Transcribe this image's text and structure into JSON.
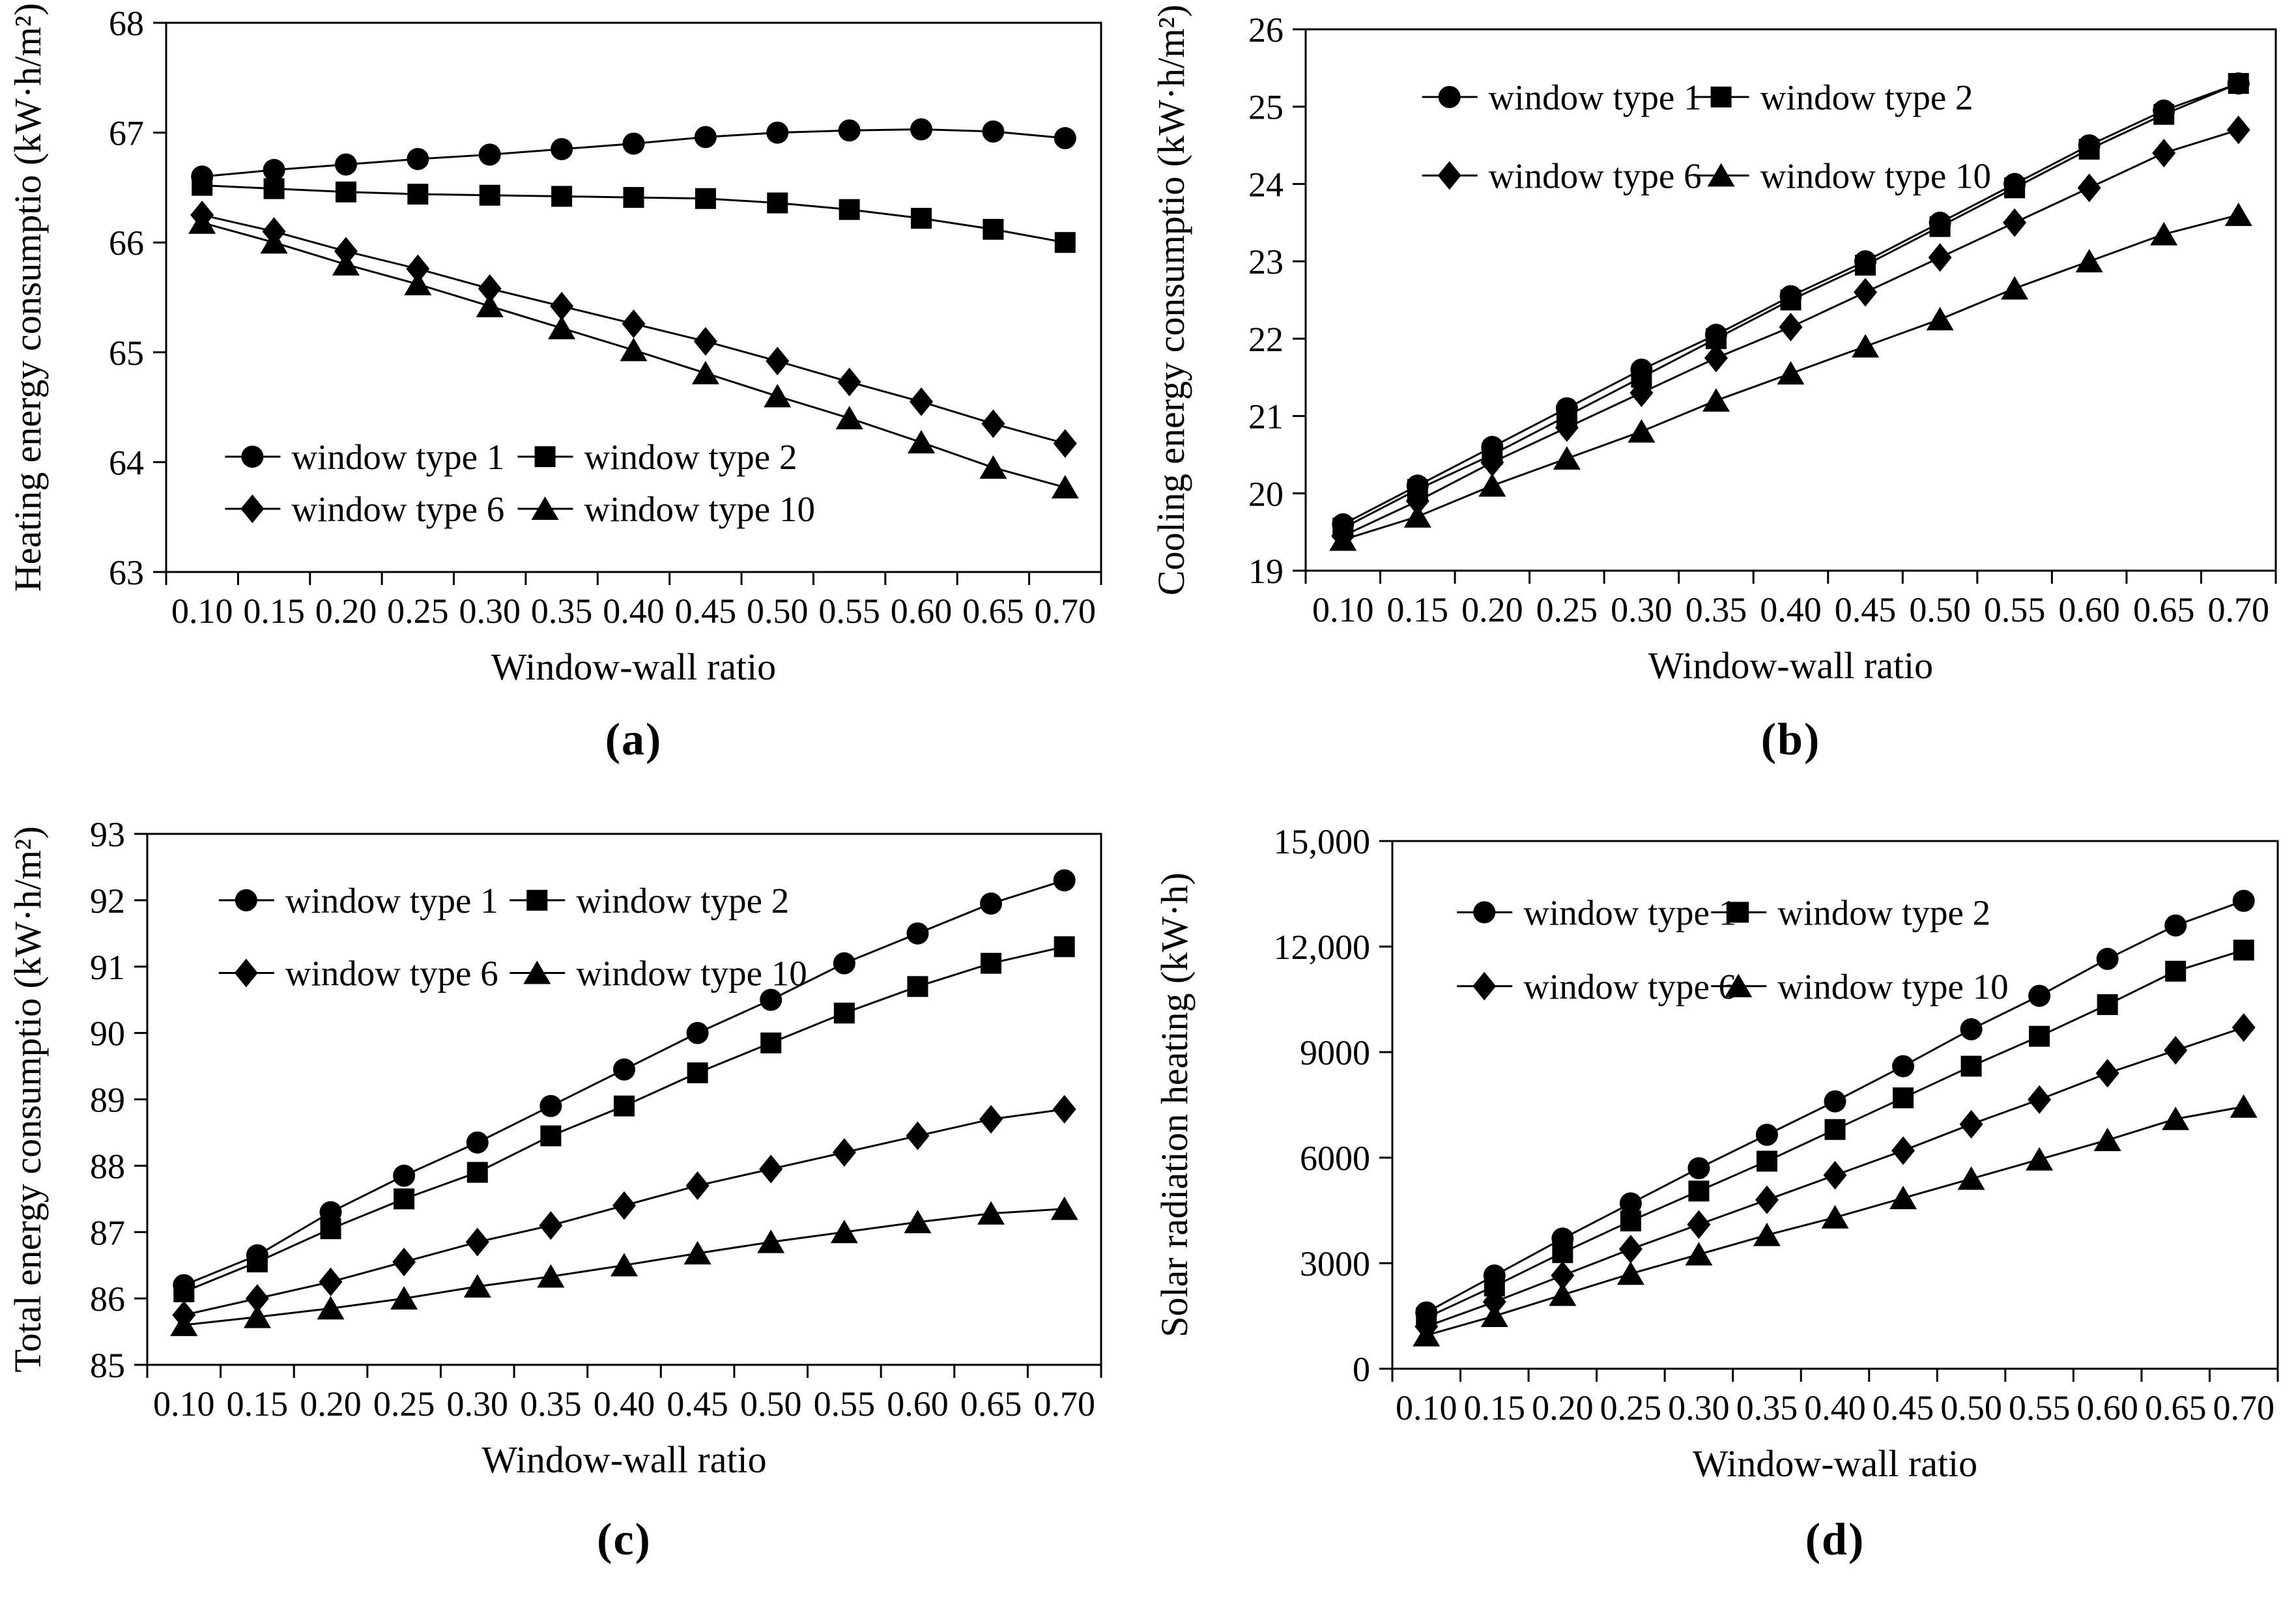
{
  "page": {
    "background": "#ffffff",
    "ink_color": "#000000"
  },
  "chart_data": [
    {
      "id": "a",
      "type": "line",
      "caption": "(a)",
      "xlabel": "Window-wall ratio",
      "ylabel": "Heating energy consumptio (kW·h/m²)",
      "categories": [
        "0.10",
        "0.15",
        "0.20",
        "0.25",
        "0.30",
        "0.35",
        "0.40",
        "0.45",
        "0.50",
        "0.55",
        "0.60",
        "0.65",
        "0.70"
      ],
      "ylim": [
        63,
        68
      ],
      "yticks": [
        63,
        64,
        65,
        66,
        67,
        68
      ],
      "ytick_labels": [
        "63",
        "64",
        "65",
        "66",
        "67",
        "68"
      ],
      "grid": false,
      "legend_position": "bottom-left",
      "series": [
        {
          "name": "window type 1",
          "marker": "circle",
          "values": [
            66.6,
            66.66,
            66.71,
            66.76,
            66.8,
            66.85,
            66.9,
            66.96,
            67.0,
            67.02,
            67.03,
            67.01,
            66.95
          ]
        },
        {
          "name": "window type 2",
          "marker": "square",
          "values": [
            66.52,
            66.49,
            66.46,
            66.44,
            66.43,
            66.42,
            66.41,
            66.4,
            66.36,
            66.3,
            66.22,
            66.12,
            66.0
          ]
        },
        {
          "name": "window type 6",
          "marker": "diamond",
          "values": [
            66.25,
            66.1,
            65.92,
            65.76,
            65.58,
            65.42,
            65.26,
            65.1,
            64.92,
            64.73,
            64.55,
            64.35,
            64.17
          ]
        },
        {
          "name": "window type 10",
          "marker": "triangle",
          "values": [
            66.18,
            66.0,
            65.8,
            65.62,
            65.42,
            65.22,
            65.02,
            64.81,
            64.6,
            64.4,
            64.18,
            63.95,
            63.77
          ]
        }
      ]
    },
    {
      "id": "b",
      "type": "line",
      "caption": "(b)",
      "xlabel": "Window-wall ratio",
      "ylabel": "Cooling energy consumptio (kW·h/m²)",
      "categories": [
        "0.10",
        "0.15",
        "0.20",
        "0.25",
        "0.30",
        "0.35",
        "0.40",
        "0.45",
        "0.50",
        "0.55",
        "0.60",
        "0.65",
        "0.70"
      ],
      "ylim": [
        19,
        26
      ],
      "yticks": [
        19,
        20,
        21,
        22,
        23,
        24,
        25,
        26
      ],
      "ytick_labels": [
        "19",
        "20",
        "21",
        "22",
        "23",
        "24",
        "25",
        "26"
      ],
      "grid": false,
      "legend_position": "top-left",
      "series": [
        {
          "name": "window type 1",
          "marker": "circle",
          "values": [
            19.6,
            20.1,
            20.6,
            21.1,
            21.6,
            22.05,
            22.55,
            23.0,
            23.5,
            24.0,
            24.5,
            24.95,
            25.3
          ]
        },
        {
          "name": "window type 2",
          "marker": "square",
          "values": [
            19.55,
            20.05,
            20.5,
            21.0,
            21.5,
            22.0,
            22.5,
            22.95,
            23.45,
            23.95,
            24.45,
            24.9,
            25.3
          ]
        },
        {
          "name": "window type 6",
          "marker": "diamond",
          "values": [
            19.45,
            19.9,
            20.4,
            20.85,
            21.3,
            21.75,
            22.15,
            22.6,
            23.05,
            23.5,
            23.95,
            24.4,
            24.7
          ]
        },
        {
          "name": "window type 10",
          "marker": "triangle",
          "values": [
            19.4,
            19.7,
            20.1,
            20.45,
            20.8,
            21.2,
            21.55,
            21.9,
            22.25,
            22.65,
            23.0,
            23.35,
            23.6
          ]
        }
      ]
    },
    {
      "id": "c",
      "type": "line",
      "caption": "(c)",
      "xlabel": "Window-wall ratio",
      "ylabel": "Total energy consumptio (kW·h/m²)",
      "categories": [
        "0.10",
        "0.15",
        "0.20",
        "0.25",
        "0.30",
        "0.35",
        "0.40",
        "0.45",
        "0.50",
        "0.55",
        "0.60",
        "0.65",
        "0.70"
      ],
      "ylim": [
        85,
        93
      ],
      "yticks": [
        85,
        86,
        87,
        88,
        89,
        90,
        91,
        92,
        93
      ],
      "ytick_labels": [
        "85",
        "86",
        "87",
        "88",
        "89",
        "90",
        "91",
        "92",
        "93"
      ],
      "grid": false,
      "legend_position": "top-left",
      "series": [
        {
          "name": "window type 1",
          "marker": "circle",
          "values": [
            86.2,
            86.65,
            87.3,
            87.85,
            88.35,
            88.9,
            89.45,
            90.0,
            90.5,
            91.05,
            91.5,
            91.95,
            92.3
          ]
        },
        {
          "name": "window type 2",
          "marker": "square",
          "values": [
            86.1,
            86.55,
            87.05,
            87.5,
            87.9,
            88.45,
            88.9,
            89.4,
            89.85,
            90.3,
            90.7,
            91.05,
            91.3
          ]
        },
        {
          "name": "window type 6",
          "marker": "diamond",
          "values": [
            85.75,
            86.0,
            86.25,
            86.55,
            86.85,
            87.1,
            87.4,
            87.7,
            87.95,
            88.2,
            88.45,
            88.7,
            88.85
          ]
        },
        {
          "name": "window type 10",
          "marker": "triangle",
          "values": [
            85.6,
            85.72,
            85.85,
            86.0,
            86.18,
            86.33,
            86.5,
            86.68,
            86.85,
            87.0,
            87.15,
            87.28,
            87.35
          ]
        }
      ]
    },
    {
      "id": "d",
      "type": "line",
      "caption": "(d)",
      "xlabel": "Window-wall ratio",
      "ylabel": "Solar radiation heating (kW·h)",
      "categories": [
        "0.10",
        "0.15",
        "0.20",
        "0.25",
        "0.30",
        "0.35",
        "0.40",
        "0.45",
        "0.50",
        "0.55",
        "0.60",
        "0.65",
        "0.70"
      ],
      "ylim": [
        0,
        15000
      ],
      "yticks": [
        0,
        3000,
        6000,
        9000,
        12000,
        15000
      ],
      "ytick_labels": [
        "0",
        "3000",
        "6000",
        "9000",
        "12,000",
        "15,000"
      ],
      "grid": false,
      "legend_position": "top-left",
      "series": [
        {
          "name": "window type 1",
          "marker": "circle",
          "values": [
            1600,
            2650,
            3700,
            4700,
            5700,
            6650,
            7600,
            8600,
            9650,
            10600,
            11650,
            12600,
            13300
          ]
        },
        {
          "name": "window type 2",
          "marker": "square",
          "values": [
            1450,
            2350,
            3300,
            4200,
            5050,
            5900,
            6800,
            7700,
            8600,
            9450,
            10350,
            11300,
            11900
          ]
        },
        {
          "name": "window type 6",
          "marker": "diamond",
          "values": [
            1200,
            1900,
            2650,
            3400,
            4100,
            4800,
            5500,
            6200,
            6950,
            7650,
            8400,
            9050,
            9700
          ]
        },
        {
          "name": "window type 10",
          "marker": "triangle",
          "values": [
            950,
            1500,
            2100,
            2700,
            3250,
            3800,
            4300,
            4850,
            5400,
            5950,
            6500,
            7100,
            7450
          ]
        }
      ]
    }
  ]
}
